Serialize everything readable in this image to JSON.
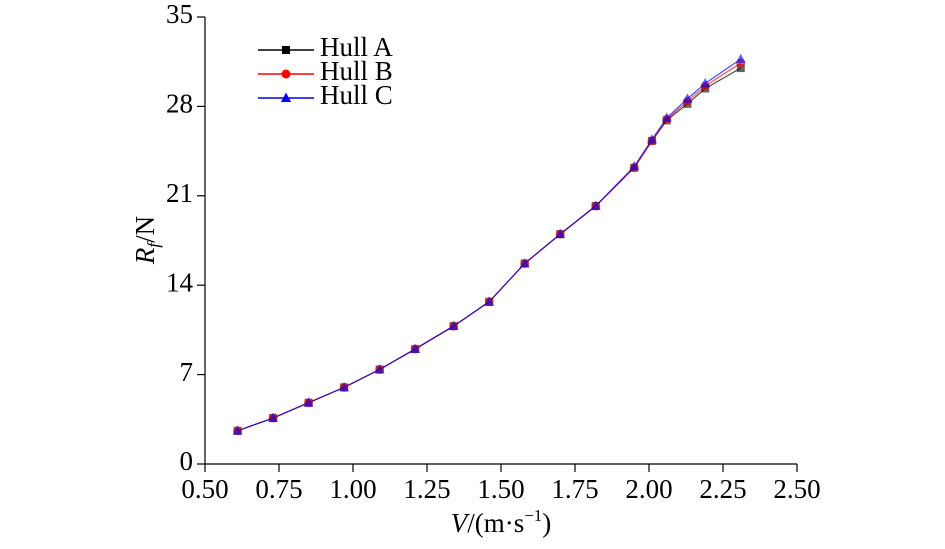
{
  "chart_data": {
    "type": "line",
    "xlabel": {
      "symbol": "V",
      "unit": "/(m·s",
      "superscript": "−1",
      "close": ")"
    },
    "ylabel": {
      "symbol": "R",
      "subscript": "f",
      "unit": "/N"
    },
    "x": [
      0.61,
      0.73,
      0.85,
      0.97,
      1.09,
      1.21,
      1.34,
      1.46,
      1.58,
      1.7,
      1.82,
      1.95,
      2.01,
      2.06,
      2.13,
      2.19,
      2.31
    ],
    "series": [
      {
        "name": "Hull A",
        "color": "#000000",
        "marker": "square",
        "values": [
          2.6,
          3.6,
          4.8,
          6.0,
          7.4,
          9.0,
          10.8,
          12.7,
          15.7,
          18.0,
          20.2,
          23.2,
          25.3,
          26.9,
          28.2,
          29.4,
          31.0
        ]
      },
      {
        "name": "Hull B",
        "color": "#ff0000",
        "marker": "circle",
        "values": [
          2.6,
          3.6,
          4.8,
          6.0,
          7.4,
          9.0,
          10.8,
          12.7,
          15.7,
          18.0,
          20.2,
          23.2,
          25.3,
          27.0,
          28.4,
          29.6,
          31.4
        ]
      },
      {
        "name": "Hull C",
        "color": "#0000ff",
        "marker": "triangle",
        "values": [
          2.6,
          3.6,
          4.8,
          6.0,
          7.4,
          9.0,
          10.8,
          12.7,
          15.7,
          18.0,
          20.2,
          23.3,
          25.4,
          27.1,
          28.6,
          29.8,
          31.7
        ]
      }
    ],
    "xlim": [
      0.5,
      2.5
    ],
    "xticks": [
      {
        "value": 0.5,
        "label": "0.50"
      },
      {
        "value": 0.75,
        "label": "0.75"
      },
      {
        "value": 1.0,
        "label": "1.00"
      },
      {
        "value": 1.25,
        "label": "1.25"
      },
      {
        "value": 1.5,
        "label": "1.50"
      },
      {
        "value": 1.75,
        "label": "1.75"
      },
      {
        "value": 2.0,
        "label": "2.00"
      },
      {
        "value": 2.25,
        "label": "2.25"
      },
      {
        "value": 2.5,
        "label": "2.50"
      }
    ],
    "ylim": [
      0,
      35
    ],
    "yticks": [
      0,
      7,
      14,
      21,
      28,
      35
    ],
    "grid": false,
    "legend": "upper left"
  }
}
